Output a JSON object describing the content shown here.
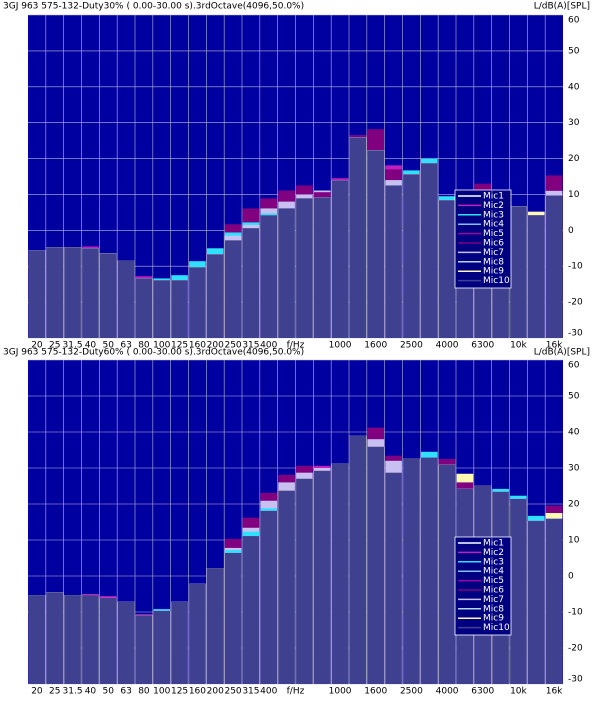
{
  "chart_data": [
    {
      "type": "bar",
      "title": "3GJ 963 575-132-Duty30% ( 0.00-30.00 s).3rdOctave(4096,50.0%)",
      "y_label": "L/dB(A)[SPL]",
      "x_label": "f/Hz",
      "categories": [
        "20",
        "25",
        "31.5",
        "40",
        "50",
        "63",
        "80",
        "100",
        "125",
        "160",
        "200",
        "250",
        "315",
        "400",
        null,
        null,
        null,
        "1000",
        null,
        "1600",
        null,
        "2500",
        null,
        "4000",
        null,
        "6300",
        null,
        "10k",
        null,
        "16k"
      ],
      "ylim": [
        -30,
        60
      ],
      "yticks": [
        -30,
        -20,
        -10,
        0,
        10,
        20,
        30,
        40,
        50,
        60
      ],
      "grid": true,
      "series": [
        {
          "name": "Mic1",
          "color": "#ffffff",
          "values": [
            -5.6,
            -4.7,
            -4.7,
            -5,
            -6.4,
            -8.4,
            -13.4,
            -13.9,
            -13.9,
            -10.3,
            -6.7,
            -2.8,
            0.6,
            4.2,
            6.1,
            8.9,
            9.2,
            13.9,
            25.9,
            22.3,
            12.5,
            15.6,
            18.7,
            8.4,
            7,
            9.7,
            8.4,
            6.7,
            4.2,
            9.7
          ]
        },
        {
          "name": "Mic2",
          "color": "#c020c0",
          "values": [
            -5.6,
            -4.7,
            -4.7,
            -4.5,
            -6.4,
            -8.4,
            -12.8,
            -13.9,
            -13.9,
            -10.3,
            -6.7,
            -2.8,
            0.6,
            4.2,
            6.1,
            8.9,
            10.6,
            14.5,
            26.5,
            22.3,
            18.1,
            15.6,
            18.7,
            8.4,
            7,
            9.7,
            8.4,
            6.7,
            4.2,
            9.7
          ]
        },
        {
          "name": "Mic3",
          "color": "#30e0ff",
          "values": [
            -5.6,
            -4.7,
            -4.7,
            -5,
            -6.4,
            -8.4,
            -13.4,
            -13.4,
            -12.5,
            -8.6,
            -5,
            -0.6,
            2.2,
            4.7,
            6.1,
            8.9,
            9.2,
            13.9,
            25.9,
            22.3,
            12.5,
            16.7,
            20,
            9.5,
            7,
            9.7,
            8.4,
            6.7,
            4.2,
            9.7
          ]
        },
        {
          "name": "Mic4",
          "color": "#80c0ff",
          "values": [
            -5.6,
            -4.7,
            -4.7,
            -5,
            -6.4,
            -8.4,
            -13.4,
            -13.9,
            -13.9,
            -10.3,
            -6.7,
            -2.8,
            0.6,
            4.2,
            6.1,
            8.9,
            9.2,
            13.9,
            25.9,
            22.3,
            12.5,
            15.6,
            18.7,
            8.4,
            7,
            9.7,
            8.4,
            6.7,
            4.2,
            9.7
          ]
        },
        {
          "name": "Mic5",
          "color": "#a000a0",
          "values": [
            -5.6,
            -4.7,
            -4.7,
            -5,
            -6.4,
            -8.4,
            -13.4,
            -13.9,
            -13.9,
            -10.3,
            -6.7,
            -2.8,
            0.6,
            4.2,
            6.1,
            8.9,
            9.2,
            13.9,
            25.9,
            22.3,
            12.5,
            15.6,
            18.7,
            8.4,
            7,
            9.7,
            8.4,
            6.7,
            4.2,
            9.7
          ]
        },
        {
          "name": "Mic6",
          "color": "#800080",
          "values": [
            -5.6,
            -4.7,
            -4.7,
            -5,
            -6.4,
            -8.4,
            -13.4,
            -13.9,
            -13.9,
            -10.3,
            -6.7,
            1.7,
            6.1,
            8.9,
            11.1,
            12.5,
            10.6,
            13.9,
            26.5,
            28.2,
            17,
            15.6,
            18.7,
            8.4,
            7,
            13,
            8.4,
            6.7,
            4.2,
            15.3
          ]
        },
        {
          "name": "Mic7",
          "color": "#c8c0f0",
          "values": [
            -5.6,
            -4.7,
            -4.7,
            -5,
            -6.4,
            -8.4,
            -13.4,
            -13.9,
            -13.9,
            -10.3,
            -6.7,
            -1.5,
            1.5,
            6.1,
            8,
            10,
            11.1,
            13.9,
            25.9,
            22.3,
            14,
            15.6,
            18.7,
            8.4,
            7,
            9.7,
            8.4,
            6.7,
            4.2,
            11
          ]
        },
        {
          "name": "Mic8",
          "color": "#b0d8f0",
          "values": [
            -5.6,
            -4.7,
            -4.7,
            -5,
            -6.4,
            -8.4,
            -13.4,
            -13.9,
            -13.9,
            -10.3,
            -6.7,
            -2.8,
            0.6,
            4.2,
            6.1,
            8.9,
            9.2,
            13.9,
            25.9,
            22.3,
            12.5,
            15.6,
            18.7,
            8.4,
            7,
            9.7,
            8.4,
            6.7,
            4.2,
            9.7
          ]
        },
        {
          "name": "Mic9",
          "color": "#fff8b0",
          "values": [
            -5.6,
            -4.7,
            -4.7,
            -5,
            -6.4,
            -8.4,
            -13.4,
            -13.9,
            -13.9,
            -10.3,
            -6.7,
            -2.8,
            0.6,
            4.2,
            6.1,
            8.9,
            9.2,
            13.9,
            25.9,
            22.3,
            12.5,
            15.6,
            18.7,
            8.4,
            7,
            9.7,
            8.4,
            6.7,
            5.2,
            9.7
          ]
        },
        {
          "name": "Mic10",
          "color": "#404090",
          "values": [
            -5.6,
            -4.7,
            -4.7,
            -5,
            -6.4,
            -8.4,
            -13.4,
            -13.9,
            -13.9,
            -10.3,
            -6.7,
            -2.8,
            0.6,
            4.2,
            6.1,
            8.9,
            9.2,
            13.9,
            25.9,
            22.3,
            12.5,
            15.6,
            18.7,
            8.4,
            7,
            9.7,
            8.4,
            6.7,
            4.2,
            9.7
          ]
        }
      ]
    },
    {
      "type": "bar",
      "title": "3GJ 963 575-132-Duty60% ( 0.00-30.00 s).3rdOctave(4096,50.0%)",
      "y_label": "L/dB(A)[SPL]",
      "x_label": "f/Hz",
      "categories": [
        "20",
        "25",
        "31.5",
        "40",
        "50",
        "63",
        "80",
        "100",
        "125",
        "160",
        "200",
        "250",
        "315",
        "400",
        null,
        null,
        null,
        "1000",
        null,
        "1600",
        null,
        "2500",
        null,
        "4000",
        null,
        "6300",
        null,
        "10k",
        null,
        "16k"
      ],
      "ylim": [
        -30,
        60
      ],
      "yticks": [
        -30,
        -20,
        -10,
        0,
        10,
        20,
        30,
        40,
        50,
        60
      ],
      "grid": true,
      "series": [
        {
          "name": "Mic1",
          "color": "#ffffff",
          "values": [
            -5.3,
            -4.5,
            -5.3,
            -5.3,
            -6.1,
            -7.2,
            -10.9,
            -9.7,
            -7.2,
            -2.2,
            2.2,
            6.4,
            11.1,
            18.1,
            23.7,
            27,
            29.2,
            31.2,
            39,
            35.9,
            28.7,
            32.6,
            32.9,
            30.9,
            24.2,
            25.1,
            23.4,
            21.4,
            15.3,
            15.9
          ]
        },
        {
          "name": "Mic2",
          "color": "#c020c0",
          "values": [
            -5.3,
            -4.5,
            -5.3,
            -5,
            -5.6,
            -7.2,
            -10.6,
            -9.7,
            -7.2,
            -2.2,
            2.2,
            6.4,
            11.1,
            18.1,
            23.7,
            27,
            30.6,
            31.2,
            39,
            35.9,
            28.7,
            32.6,
            32.9,
            32.5,
            24.2,
            25.1,
            23.4,
            21.4,
            15.3,
            19.5
          ]
        },
        {
          "name": "Mic3",
          "color": "#30e0ff",
          "values": [
            -5.3,
            -4.5,
            -5.3,
            -5.3,
            -6.1,
            -7.2,
            -10.9,
            -9.2,
            -7.2,
            -2.2,
            2.2,
            7.2,
            12.3,
            18.8,
            23.7,
            27,
            29.2,
            31.2,
            39,
            35.9,
            28.7,
            32.6,
            34.5,
            30.9,
            24.2,
            25.1,
            24.2,
            22.3,
            16.7,
            15.9
          ]
        },
        {
          "name": "Mic4",
          "color": "#80c0ff",
          "values": [
            -5.3,
            -4.5,
            -5.3,
            -5.3,
            -6.1,
            -7.2,
            -10.9,
            -9.7,
            -7.2,
            -2.2,
            2.2,
            6.4,
            11.1,
            18.1,
            23.7,
            27,
            29.2,
            31.2,
            39,
            35.9,
            28.7,
            32.6,
            32.9,
            30.9,
            24.2,
            25.1,
            23.4,
            21.4,
            15.3,
            15.9
          ]
        },
        {
          "name": "Mic5",
          "color": "#a000a0",
          "values": [
            -5.3,
            -4.5,
            -5.3,
            -5.3,
            -6.1,
            -7.2,
            -10.9,
            -9.7,
            -7.2,
            -2.2,
            2.2,
            6.4,
            11.1,
            18.1,
            23.7,
            27,
            29.2,
            31.2,
            39,
            35.9,
            28.7,
            32.6,
            32.9,
            30.9,
            24.2,
            25.1,
            23.4,
            21.4,
            15.3,
            15.9
          ]
        },
        {
          "name": "Mic6",
          "color": "#800080",
          "values": [
            -5.3,
            -4.5,
            -5.3,
            -5.3,
            -6.1,
            -7.2,
            -10.9,
            -9.7,
            -7.2,
            -2.2,
            2.2,
            10.3,
            16.2,
            23.1,
            28.1,
            30.6,
            29.2,
            31.2,
            39,
            41.2,
            33.4,
            32.6,
            32.9,
            32.5,
            26,
            25.1,
            23.4,
            21.4,
            15.3,
            19.5
          ]
        },
        {
          "name": "Mic7",
          "color": "#c8c0f0",
          "values": [
            -5.3,
            -4.5,
            -5.3,
            -5.3,
            -6.1,
            -7.2,
            -10.9,
            -9.7,
            -7.2,
            -2.2,
            2.2,
            7.8,
            13.4,
            20.9,
            26,
            28.7,
            30,
            31.2,
            39,
            38,
            32,
            32.6,
            32.9,
            30.9,
            24.2,
            25.1,
            23.4,
            21.4,
            15.3,
            15.9
          ]
        },
        {
          "name": "Mic8",
          "color": "#b0d8f0",
          "values": [
            -5.3,
            -4.5,
            -5.3,
            -5.3,
            -6.1,
            -7.2,
            -10.9,
            -9.7,
            -7.2,
            -2.2,
            2.2,
            6.4,
            11.1,
            18.1,
            23.7,
            27,
            29.2,
            31.2,
            39,
            35.9,
            28.7,
            32.6,
            32.9,
            30.9,
            24.2,
            25.1,
            23.4,
            21.4,
            15.3,
            15.9
          ]
        },
        {
          "name": "Mic9",
          "color": "#fff8b0",
          "values": [
            -5.3,
            -4.5,
            -5.3,
            -5.3,
            -6.1,
            -7.2,
            -10.9,
            -9.7,
            -7.2,
            -2.2,
            2.2,
            6.4,
            11.1,
            18.1,
            23.7,
            27,
            29.2,
            31.2,
            39,
            35.9,
            28.7,
            32.6,
            32.9,
            30.9,
            28.4,
            25.1,
            23.4,
            21.4,
            15.3,
            17.5
          ]
        },
        {
          "name": "Mic10",
          "color": "#404090",
          "values": [
            -5.3,
            -4.5,
            -5.3,
            -5.3,
            -6.1,
            -7.2,
            -10.9,
            -9.7,
            -7.2,
            -2.2,
            2.2,
            6.4,
            11.1,
            18.1,
            23.7,
            27,
            29.2,
            31.2,
            39,
            35.9,
            28.7,
            32.6,
            32.9,
            30.9,
            24.2,
            25.1,
            23.4,
            21.4,
            15.3,
            15.9
          ]
        }
      ]
    }
  ]
}
